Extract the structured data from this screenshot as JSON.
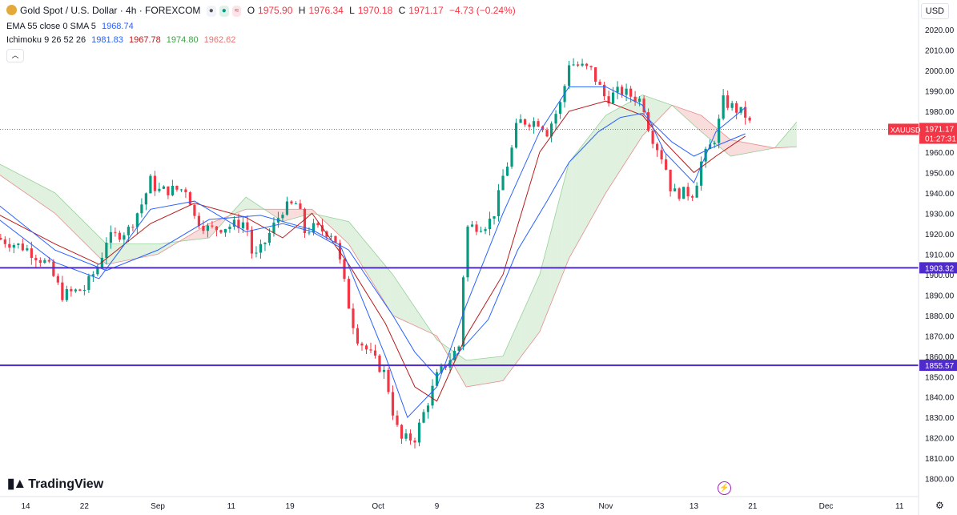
{
  "legend": {
    "symbol": "Gold Spot / U.S. Dollar · 4h · FOREXCOM",
    "o_label": "O",
    "o": "1975.90",
    "h_label": "H",
    "h": "1976.34",
    "l_label": "L",
    "l": "1970.18",
    "c_label": "C",
    "c": "1971.17",
    "change": "−4.73 (−0.24%)",
    "ema_label": "EMA 55 close 0 SMA 5",
    "ema_value": "1968.74",
    "ichimoku_label": "Ichimoku 9 26 52 26",
    "ichimoku_values": [
      "1981.83",
      "1967.78",
      "1974.80",
      "1962.62"
    ],
    "collapse_icon": "chevron-up-icon"
  },
  "currency": "USD",
  "brand": "TradingView",
  "colors": {
    "up": "#089981",
    "down": "#f23645",
    "ema": "#2962ff",
    "conversion": "#2962ff",
    "base": "#b71c1c",
    "cloud_bull": "#a5d6a7",
    "cloud_bear": "#ef9a9a",
    "hline": "#4f2bcc",
    "price_label": "#f23645"
  },
  "chart_data": {
    "type": "candlestick",
    "ylim": [
      1795,
      2028
    ],
    "y_ticks": [
      1800,
      1810,
      1820,
      1830,
      1840,
      1850,
      1860,
      1870,
      1880,
      1890,
      1900,
      1910,
      1920,
      1930,
      1940,
      1950,
      1960,
      1970,
      1980,
      1990,
      2000,
      2010,
      2020
    ],
    "x_tick_labels": [
      "14",
      "22",
      "Sep",
      "11",
      "19",
      "Oct",
      "9",
      "23",
      "Nov",
      "13",
      "21",
      "Dec",
      "11"
    ],
    "close_path": [
      [
        "Aug 10",
        1918
      ],
      [
        "Aug 14",
        1913
      ],
      [
        "Aug 17",
        1905
      ],
      [
        "Aug 19",
        1890
      ],
      [
        "Aug 22",
        1893
      ],
      [
        "Aug 24",
        1905
      ],
      [
        "Aug 25",
        1917
      ],
      [
        "Aug 28",
        1922
      ],
      [
        "Aug 30",
        1936
      ],
      [
        "Aug 31",
        1946
      ],
      [
        "Sep 1",
        1941
      ],
      [
        "Sep 5",
        1942
      ],
      [
        "Sep 6",
        1928
      ],
      [
        "Sep 8",
        1922
      ],
      [
        "Sep 11",
        1924
      ],
      [
        "Sep 13",
        1926
      ],
      [
        "Sep 14",
        1907
      ],
      [
        "Sep 15",
        1912
      ],
      [
        "Sep 18",
        1932
      ],
      [
        "Sep 20",
        1935
      ],
      [
        "Sep 21",
        1921
      ],
      [
        "Sep 22",
        1923
      ],
      [
        "Sep 25",
        1920
      ],
      [
        "Sep 27",
        1885
      ],
      [
        "Sep 28",
        1870
      ],
      [
        "Oct 2",
        1851
      ],
      [
        "Oct 3",
        1833
      ],
      [
        "Oct 4",
        1819
      ],
      [
        "Oct 6",
        1820
      ],
      [
        "Oct 9",
        1850
      ],
      [
        "Oct 11",
        1860
      ],
      [
        "Oct 12",
        1865
      ],
      [
        "Oct 13",
        1923
      ],
      [
        "Oct 16",
        1925
      ],
      [
        "Oct 17",
        1932
      ],
      [
        "Oct 18",
        1948
      ],
      [
        "Oct 19",
        1958
      ],
      [
        "Oct 20",
        1975
      ],
      [
        "Oct 23",
        1975
      ],
      [
        "Oct 24",
        1970
      ],
      [
        "Oct 26",
        1985
      ],
      [
        "Oct 27",
        2004
      ],
      [
        "Oct 30",
        2000
      ],
      [
        "Nov 1",
        1986
      ],
      [
        "Nov 3",
        1990
      ],
      [
        "Nov 6",
        1985
      ],
      [
        "Nov 7",
        1970
      ],
      [
        "Nov 9",
        1955
      ],
      [
        "Nov 10",
        1940
      ],
      [
        "Nov 13",
        1940
      ],
      [
        "Nov 14",
        1955
      ],
      [
        "Nov 16",
        1968
      ],
      [
        "Nov 17",
        1985
      ],
      [
        "Nov 20",
        1978
      ],
      [
        "Nov 21",
        1971.17
      ]
    ],
    "ema_55": [
      [
        "Aug 10",
        1935
      ],
      [
        "Aug 18",
        1912
      ],
      [
        "Aug 25",
        1902
      ],
      [
        "Sep 1",
        1912
      ],
      [
        "Sep 8",
        1927
      ],
      [
        "Sep 15",
        1929
      ],
      [
        "Sep 22",
        1922
      ],
      [
        "Sep 27",
        1912
      ],
      [
        "Oct 3",
        1880
      ],
      [
        "Oct 6",
        1862
      ],
      [
        "Oct 9",
        1850
      ],
      [
        "Oct 12",
        1862
      ],
      [
        "Oct 16",
        1878
      ],
      [
        "Oct 20",
        1912
      ],
      [
        "Oct 24",
        1936
      ],
      [
        "Oct 27",
        1955
      ],
      [
        "Oct 31",
        1970
      ],
      [
        "Nov 3",
        1977
      ],
      [
        "Nov 6",
        1979
      ],
      [
        "Nov 10",
        1965
      ],
      [
        "Nov 13",
        1958
      ],
      [
        "Nov 16",
        1963
      ],
      [
        "Nov 20",
        1969
      ]
    ],
    "conversion_line": [
      [
        "Aug 10",
        1928
      ],
      [
        "Aug 18",
        1906
      ],
      [
        "Aug 24",
        1898
      ],
      [
        "Aug 31",
        1932
      ],
      [
        "Sep 6",
        1936
      ],
      [
        "Sep 13",
        1921
      ],
      [
        "Sep 18",
        1925
      ],
      [
        "Sep 22",
        1921
      ],
      [
        "Sep 26",
        1913
      ],
      [
        "Oct 2",
        1860
      ],
      [
        "Oct 5",
        1830
      ],
      [
        "Oct 9",
        1845
      ],
      [
        "Oct 13",
        1885
      ],
      [
        "Oct 18",
        1930
      ],
      [
        "Oct 23",
        1970
      ],
      [
        "Oct 27",
        1992
      ],
      [
        "Nov 1",
        1992
      ],
      [
        "Nov 6",
        1983
      ],
      [
        "Nov 9",
        1960
      ],
      [
        "Nov 13",
        1945
      ],
      [
        "Nov 16",
        1970
      ],
      [
        "Nov 20",
        1981.83
      ]
    ],
    "base_line": [
      [
        "Aug 10",
        1930
      ],
      [
        "Aug 18",
        1915
      ],
      [
        "Aug 24",
        1905
      ],
      [
        "Aug 31",
        1925
      ],
      [
        "Sep 6",
        1935
      ],
      [
        "Sep 13",
        1928
      ],
      [
        "Sep 18",
        1918
      ],
      [
        "Sep 22",
        1930
      ],
      [
        "Sep 27",
        1905
      ],
      [
        "Oct 2",
        1876
      ],
      [
        "Oct 6",
        1845
      ],
      [
        "Oct 9",
        1838
      ],
      [
        "Oct 13",
        1870
      ],
      [
        "Oct 18",
        1900
      ],
      [
        "Oct 23",
        1960
      ],
      [
        "Oct 27",
        1980
      ],
      [
        "Nov 1",
        1985
      ],
      [
        "Nov 6",
        1978
      ],
      [
        "Nov 9",
        1965
      ],
      [
        "Nov 13",
        1950
      ],
      [
        "Nov 16",
        1958
      ],
      [
        "Nov 20",
        1967.78
      ]
    ],
    "cloud_span_a": [
      [
        "Aug 10",
        1955
      ],
      [
        "Aug 18",
        1940
      ],
      [
        "Aug 25",
        1915
      ],
      [
        "Sep 1",
        1915
      ],
      [
        "Sep 8",
        1918
      ],
      [
        "Sep 13",
        1938
      ],
      [
        "Sep 18",
        1926
      ],
      [
        "Sep 22",
        1930
      ],
      [
        "Sep 27",
        1926
      ],
      [
        "Oct 3",
        1900
      ],
      [
        "Oct 9",
        1868
      ],
      [
        "Oct 13",
        1858
      ],
      [
        "Oct 18",
        1860
      ],
      [
        "Oct 23",
        1900
      ],
      [
        "Oct 27",
        1955
      ],
      [
        "Nov 1",
        1978
      ],
      [
        "Nov 6",
        1988
      ],
      [
        "Nov 10",
        1983
      ],
      [
        "Nov 14",
        1970
      ],
      [
        "Nov 18",
        1958
      ],
      [
        "Nov 24",
        1962
      ],
      [
        "Nov 27",
        1974.8
      ]
    ],
    "cloud_span_b": [
      [
        "Aug 10",
        1950
      ],
      [
        "Aug 18",
        1930
      ],
      [
        "Aug 25",
        1905
      ],
      [
        "Sep 1",
        1910
      ],
      [
        "Sep 8",
        1925
      ],
      [
        "Sep 13",
        1932
      ],
      [
        "Sep 18",
        1932
      ],
      [
        "Sep 22",
        1932
      ],
      [
        "Sep 27",
        1915
      ],
      [
        "Oct 3",
        1880
      ],
      [
        "Oct 9",
        1870
      ],
      [
        "Oct 13",
        1845
      ],
      [
        "Oct 18",
        1848
      ],
      [
        "Oct 23",
        1872
      ],
      [
        "Oct 27",
        1908
      ],
      [
        "Nov 1",
        1940
      ],
      [
        "Nov 6",
        1968
      ],
      [
        "Nov 10",
        1983
      ],
      [
        "Nov 14",
        1978
      ],
      [
        "Nov 18",
        1966
      ],
      [
        "Nov 24",
        1962
      ],
      [
        "Nov 27",
        1962.62
      ]
    ],
    "horizontal_lines": [
      1903.32,
      1855.57
    ],
    "last_price": "1971.17",
    "last_price_symbol": "XAUUSD",
    "countdown": "01:27:31",
    "hline_labels": [
      "1903.32",
      "1855.57"
    ]
  }
}
